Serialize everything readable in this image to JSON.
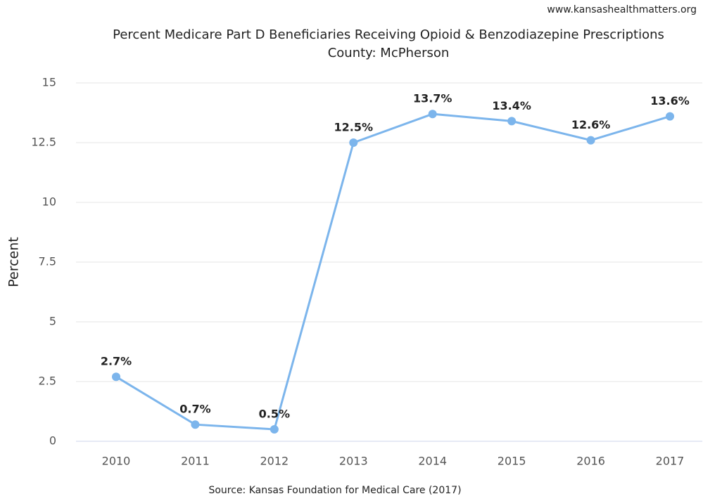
{
  "chart_data": {
    "type": "line",
    "watermark": "www.kansashealthmatters.org",
    "title": "Percent Medicare Part D Beneficiaries Receiving Opioid & Benzodiazepine Prescriptions",
    "subtitle": "County: McPherson",
    "y_label": "Percent",
    "source": "Source: Kansas Foundation for Medical Care (2017)",
    "categories": [
      "2010",
      "2011",
      "2012",
      "2013",
      "2014",
      "2015",
      "2016",
      "2017"
    ],
    "series": [
      {
        "name": "McPherson",
        "color": "#7cb5ec",
        "values": [
          2.7,
          0.7,
          0.5,
          12.5,
          13.7,
          13.4,
          12.6,
          13.6
        ],
        "value_labels": [
          "2.7%",
          "0.7%",
          "0.5%",
          "12.5%",
          "13.7%",
          "13.4%",
          "12.6%",
          "13.6%"
        ]
      }
    ],
    "ylim": [
      0,
      15
    ],
    "yticks": [
      0,
      2.5,
      5,
      7.5,
      10,
      12.5,
      15
    ],
    "grid": true
  }
}
